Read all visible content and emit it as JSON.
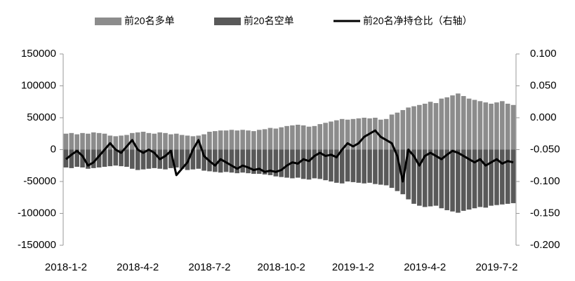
{
  "chart_data": {
    "type": "bar",
    "categories": [
      "2018-1-2",
      null,
      null,
      null,
      null,
      null,
      null,
      null,
      null,
      null,
      null,
      null,
      null,
      "2018-4-2",
      null,
      null,
      null,
      null,
      null,
      null,
      null,
      null,
      null,
      null,
      null,
      null,
      "2018-7-2",
      null,
      null,
      null,
      null,
      null,
      null,
      null,
      null,
      null,
      null,
      null,
      null,
      "2018-10-2",
      null,
      null,
      null,
      null,
      null,
      null,
      null,
      null,
      null,
      null,
      null,
      null,
      "2019-1-2",
      null,
      null,
      null,
      null,
      null,
      null,
      null,
      null,
      null,
      null,
      null,
      null,
      "2019-4-2",
      null,
      null,
      null,
      null,
      null,
      null,
      null,
      null,
      null,
      null,
      null,
      null,
      "2019-7-2",
      null,
      null,
      null
    ],
    "series": [
      {
        "name": "前20名多单",
        "type": "bar",
        "color": "#8c8c8c",
        "values": [
          25000,
          26000,
          24000,
          26000,
          25000,
          27000,
          26000,
          25000,
          22000,
          21000,
          22000,
          23000,
          26000,
          27000,
          28000,
          26000,
          25000,
          27000,
          26000,
          24000,
          25000,
          23000,
          22000,
          21000,
          22000,
          24000,
          28000,
          29000,
          30000,
          30000,
          31000,
          30000,
          31000,
          30000,
          29000,
          31000,
          32000,
          34000,
          33000,
          35000,
          37000,
          38000,
          39000,
          38000,
          36000,
          37000,
          40000,
          42000,
          44000,
          46000,
          48000,
          47000,
          48000,
          49000,
          50000,
          49000,
          50000,
          47000,
          48000,
          55000,
          58000,
          62000,
          66000,
          68000,
          70000,
          72000,
          75000,
          73000,
          80000,
          82000,
          85000,
          88000,
          84000,
          80000,
          78000,
          76000,
          74000,
          72000,
          74000,
          76000,
          72000,
          70000
        ]
      },
      {
        "name": "前20名空单",
        "type": "bar",
        "color": "#595959",
        "values": [
          -28000,
          -29000,
          -27000,
          -28000,
          -30000,
          -29000,
          -28000,
          -27000,
          -26000,
          -25000,
          -26000,
          -27000,
          -30000,
          -32000,
          -31000,
          -30000,
          -29000,
          -30000,
          -31000,
          -29000,
          -28000,
          -30000,
          -32000,
          -31000,
          -30000,
          -33000,
          -34000,
          -35000,
          -36000,
          -35000,
          -36000,
          -37000,
          -36000,
          -37000,
          -38000,
          -38000,
          -39000,
          -40000,
          -42000,
          -43000,
          -44000,
          -45000,
          -44000,
          -46000,
          -47000,
          -45000,
          -46000,
          -48000,
          -50000,
          -52000,
          -53000,
          -50000,
          -51000,
          -52000,
          -53000,
          -52000,
          -54000,
          -55000,
          -56000,
          -60000,
          -65000,
          -70000,
          -78000,
          -85000,
          -88000,
          -90000,
          -89000,
          -88000,
          -92000,
          -95000,
          -97000,
          -99000,
          -96000,
          -94000,
          -92000,
          -90000,
          -91000,
          -88000,
          -87000,
          -86000,
          -85000,
          -84000
        ]
      },
      {
        "name": "前20名净持仓比（右轴）",
        "type": "line",
        "axis": "y2",
        "color": "#000000",
        "values": [
          -0.065,
          -0.058,
          -0.052,
          -0.06,
          -0.075,
          -0.07,
          -0.06,
          -0.05,
          -0.04,
          -0.05,
          -0.055,
          -0.045,
          -0.035,
          -0.05,
          -0.055,
          -0.05,
          -0.055,
          -0.065,
          -0.06,
          -0.052,
          -0.09,
          -0.08,
          -0.07,
          -0.05,
          -0.035,
          -0.06,
          -0.068,
          -0.075,
          -0.065,
          -0.07,
          -0.075,
          -0.08,
          -0.075,
          -0.078,
          -0.082,
          -0.08,
          -0.085,
          -0.083,
          -0.085,
          -0.082,
          -0.075,
          -0.07,
          -0.072,
          -0.065,
          -0.068,
          -0.06,
          -0.055,
          -0.06,
          -0.058,
          -0.062,
          -0.05,
          -0.04,
          -0.045,
          -0.04,
          -0.03,
          -0.025,
          -0.02,
          -0.03,
          -0.035,
          -0.04,
          -0.06,
          -0.1,
          -0.05,
          -0.06,
          -0.075,
          -0.06,
          -0.055,
          -0.06,
          -0.065,
          -0.058,
          -0.052,
          -0.055,
          -0.06,
          -0.065,
          -0.07,
          -0.065,
          -0.075,
          -0.07,
          -0.065,
          -0.072,
          -0.068,
          -0.07
        ]
      }
    ],
    "ylim": [
      -150000,
      150000
    ],
    "yticks": [
      -150000,
      -100000,
      -50000,
      0,
      50000,
      100000,
      150000
    ],
    "y2lim": [
      -0.2,
      0.1
    ],
    "y2ticks": [
      {
        "value": -0.2,
        "label": "-0.200"
      },
      {
        "value": -0.15,
        "label": "-0.150"
      },
      {
        "value": -0.1,
        "label": "-0.100"
      },
      {
        "value": -0.05,
        "label": "-0.050"
      },
      {
        "value": 0,
        "label": "0.000"
      },
      {
        "value": 0.05,
        "label": "0.050"
      },
      {
        "value": 0.1,
        "label": "0.100"
      }
    ],
    "legend": "top"
  }
}
